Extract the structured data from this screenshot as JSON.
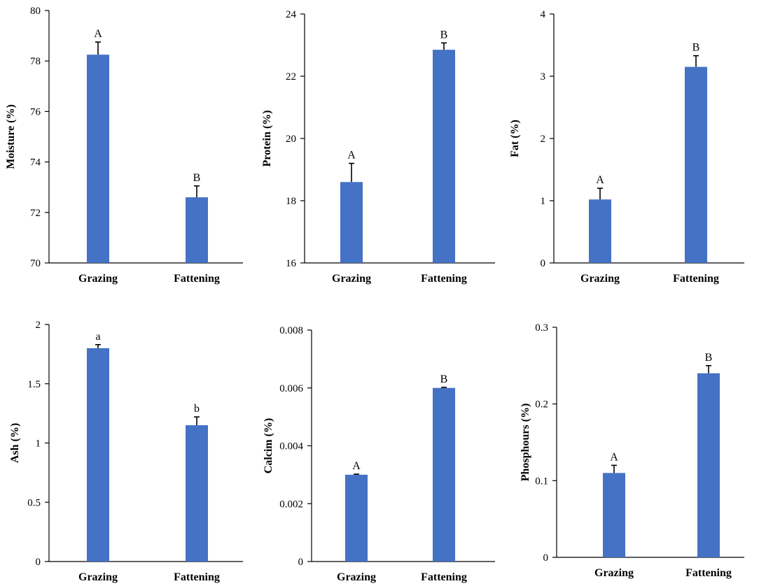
{
  "figure": {
    "bar_color": "#4472C4"
  },
  "chart_data": [
    {
      "type": "bar",
      "ylabel": "Moisture (%)",
      "ylim": [
        70,
        80
      ],
      "yticks": [
        "70",
        "72",
        "74",
        "76",
        "78",
        "80"
      ],
      "categories": [
        "Grazing",
        "Fattening"
      ],
      "values": [
        78.25,
        72.6
      ],
      "errors": [
        0.5,
        0.45
      ],
      "letters": [
        "A",
        "B"
      ]
    },
    {
      "type": "bar",
      "ylabel": "Protein (%)",
      "ylim": [
        16,
        24
      ],
      "yticks": [
        "16",
        "18",
        "20",
        "22",
        "24"
      ],
      "categories": [
        "Grazing",
        "Fattening"
      ],
      "values": [
        18.6,
        22.85
      ],
      "errors": [
        0.6,
        0.22
      ],
      "letters": [
        "A",
        "B"
      ]
    },
    {
      "type": "bar",
      "ylabel": "Fat (%)",
      "ylim": [
        0,
        4
      ],
      "yticks": [
        "0",
        "1",
        "2",
        "3",
        "4"
      ],
      "categories": [
        "Grazing",
        "Fattening"
      ],
      "values": [
        1.02,
        3.15
      ],
      "errors": [
        0.18,
        0.18
      ],
      "letters": [
        "A",
        "B"
      ]
    },
    {
      "type": "bar",
      "ylabel": "Ash (%)",
      "ylim": [
        0,
        2
      ],
      "yticks": [
        "0",
        "0.5",
        "1",
        "1.5",
        "2"
      ],
      "categories": [
        "Grazing",
        "Fattening"
      ],
      "values": [
        1.8,
        1.15
      ],
      "errors": [
        0.03,
        0.07
      ],
      "letters": [
        "a",
        "b"
      ]
    },
    {
      "type": "bar",
      "ylabel": "Calcim (%)",
      "ylim": [
        0,
        0.008
      ],
      "yticks": [
        "0",
        "0.002",
        "0.004",
        "0.006",
        "0.008"
      ],
      "categories": [
        "Grazing",
        "Fattening"
      ],
      "values": [
        0.003,
        0.006
      ],
      "errors": [
        2e-05,
        2e-05
      ],
      "letters": [
        "A",
        "B"
      ]
    },
    {
      "type": "bar",
      "ylabel": "Phosphours (%)",
      "ylim": [
        0,
        0.3
      ],
      "yticks": [
        "0",
        "0.1",
        "0.2",
        "0.3"
      ],
      "categories": [
        "Grazing",
        "Fattening"
      ],
      "values": [
        0.11,
        0.24
      ],
      "errors": [
        0.01,
        0.01
      ],
      "letters": [
        "A",
        "B"
      ]
    }
  ]
}
